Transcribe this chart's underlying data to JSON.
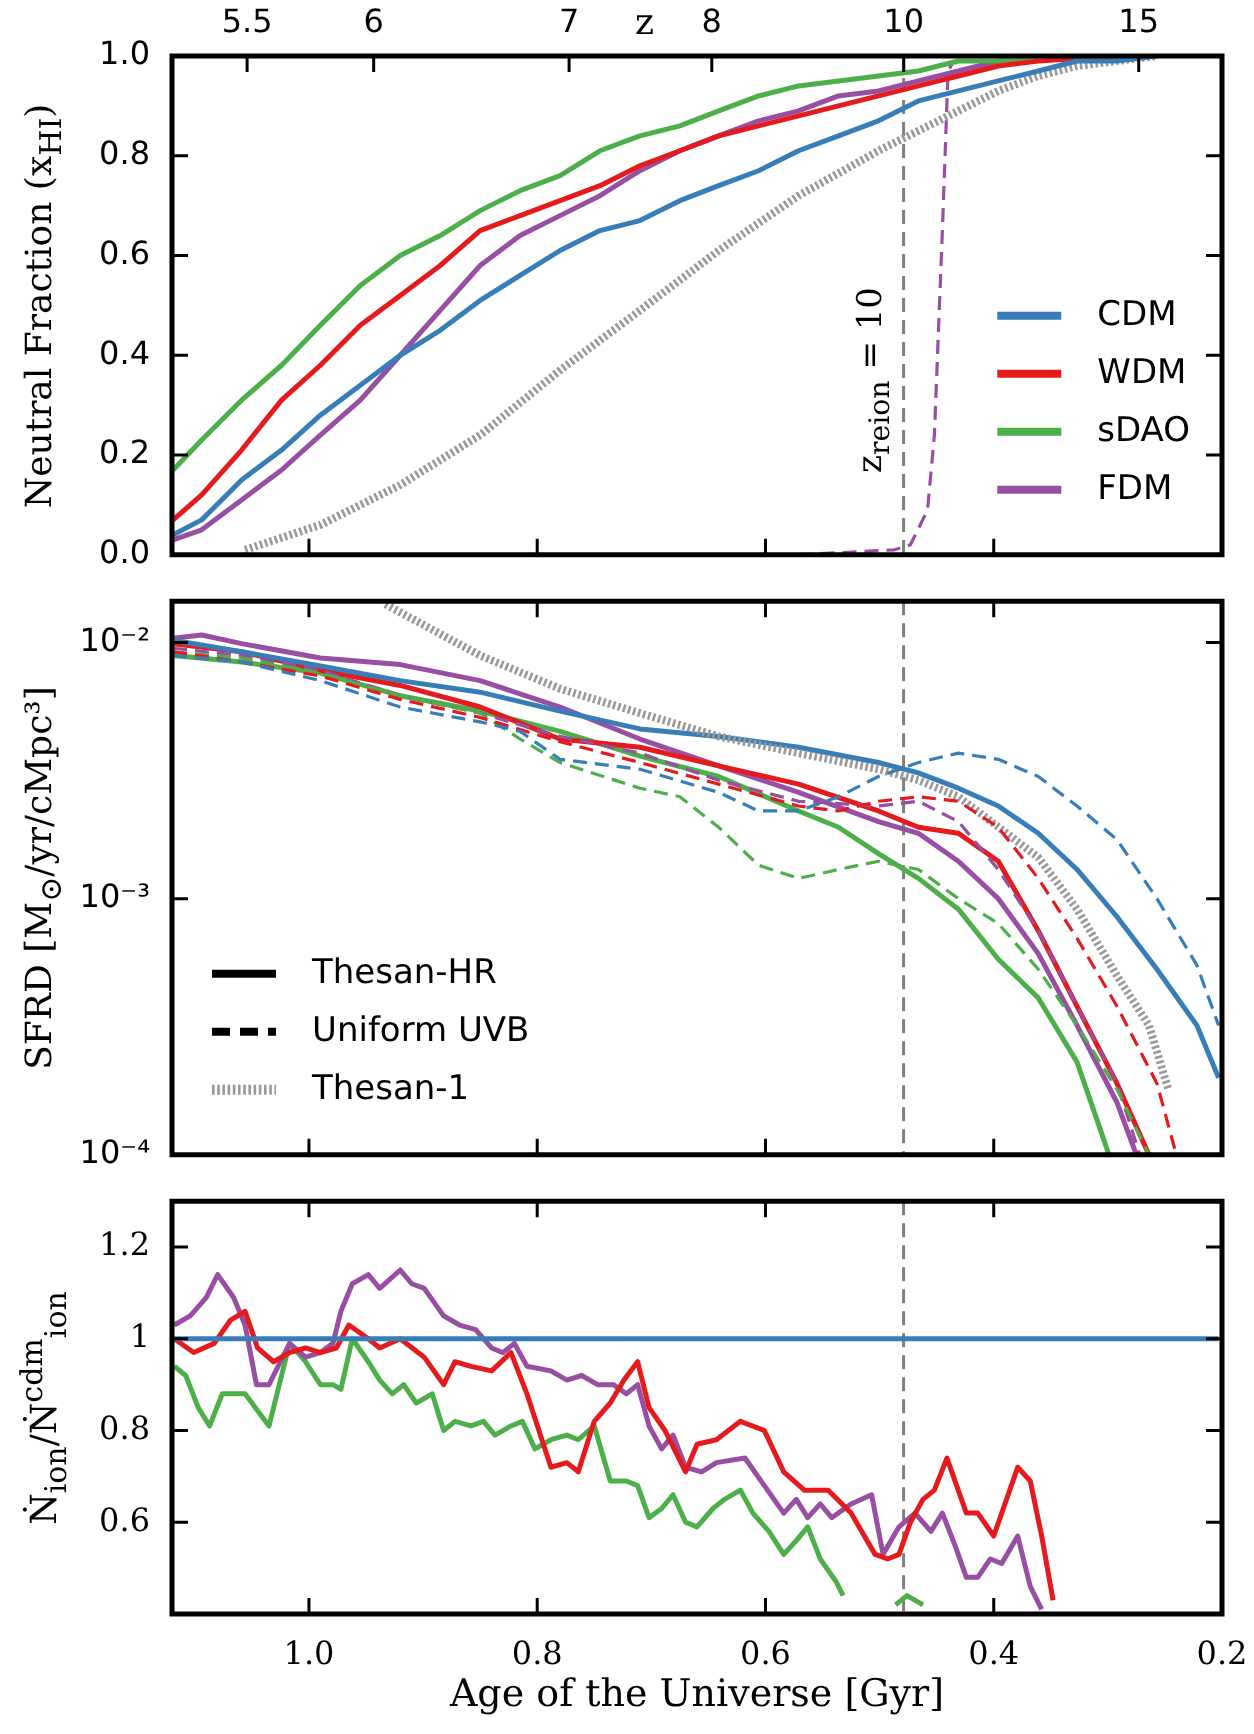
{
  "chart_data": [
    {
      "type": "line",
      "ylabel": "Neutral Fraction (x$_{HI}$)",
      "x2label": "z",
      "xlim": [
        1.12,
        0.2
      ],
      "xticks": [
        1,
        0.8,
        0.6,
        0.4,
        0.2
      ],
      "ylim": [
        0,
        1
      ],
      "yticks": [
        {
          "value": 0,
          "label": "0.0"
        },
        0.2,
        0.4,
        0.6,
        0.8,
        {
          "value": 1,
          "label": "1.0"
        }
      ],
      "tick_labels": "y",
      "legend": "bottom right",
      "annotations": [
        "5.5",
        "6",
        "7",
        "8",
        "10",
        "15",
        "z$_{reion}$ = 10"
      ],
      "ref_lines": [
        {
          "axis": "x",
          "value": 0.479,
          "color": "#808080",
          "line_style": "dashed"
        }
      ],
      "series": [
        {
          "name": "CDM",
          "color": "#377eb8",
          "x": [
            1.119,
            1.094,
            1.059,
            1.024,
            0.99,
            0.955,
            0.92,
            0.885,
            0.85,
            0.815,
            0.78,
            0.745,
            0.71,
            0.675,
            0.641,
            0.606,
            0.571,
            0.536,
            0.501,
            0.466,
            0.431,
            0.396,
            0.361,
            0.327,
            0.292,
            0.257
          ],
          "values": [
            0.04,
            0.07,
            0.15,
            0.21,
            0.28,
            0.34,
            0.4,
            0.45,
            0.51,
            0.56,
            0.61,
            0.65,
            0.67,
            0.71,
            0.74,
            0.77,
            0.81,
            0.84,
            0.87,
            0.91,
            0.93,
            0.95,
            0.97,
            0.99,
            0.99,
            1.0
          ]
        },
        {
          "name": "WDM",
          "color": "#e41a1c",
          "x": [
            1.119,
            1.094,
            1.059,
            1.024,
            0.99,
            0.955,
            0.92,
            0.885,
            0.85,
            0.815,
            0.78,
            0.745,
            0.71,
            0.675,
            0.641,
            0.606,
            0.571,
            0.536,
            0.501,
            0.466,
            0.431,
            0.396,
            0.361,
            0.292
          ],
          "values": [
            0.07,
            0.12,
            0.21,
            0.31,
            0.38,
            0.46,
            0.52,
            0.58,
            0.65,
            0.68,
            0.71,
            0.74,
            0.78,
            0.81,
            0.84,
            0.86,
            0.88,
            0.9,
            0.92,
            0.94,
            0.96,
            0.98,
            0.99,
            1.0
          ]
        },
        {
          "name": "sDAO",
          "color": "#4daf4a",
          "x": [
            1.119,
            1.094,
            1.059,
            1.024,
            0.99,
            0.955,
            0.92,
            0.885,
            0.85,
            0.815,
            0.78,
            0.745,
            0.71,
            0.675,
            0.641,
            0.606,
            0.571,
            0.536,
            0.501,
            0.466,
            0.431,
            0.396,
            0.361
          ],
          "values": [
            0.17,
            0.23,
            0.31,
            0.38,
            0.46,
            0.54,
            0.6,
            0.64,
            0.69,
            0.73,
            0.76,
            0.81,
            0.84,
            0.86,
            0.89,
            0.92,
            0.94,
            0.95,
            0.96,
            0.97,
            0.99,
            0.99,
            1.0
          ]
        },
        {
          "name": "FDM",
          "color": "#984ea3",
          "x": [
            1.119,
            1.094,
            1.059,
            1.024,
            0.99,
            0.955,
            0.92,
            0.885,
            0.85,
            0.815,
            0.78,
            0.745,
            0.71,
            0.675,
            0.641,
            0.606,
            0.571,
            0.536,
            0.501,
            0.466,
            0.431,
            0.396,
            0.361
          ],
          "values": [
            0.03,
            0.05,
            0.11,
            0.17,
            0.24,
            0.31,
            0.4,
            0.49,
            0.58,
            0.64,
            0.68,
            0.72,
            0.77,
            0.81,
            0.84,
            0.87,
            0.89,
            0.92,
            0.93,
            0.95,
            0.97,
            0.99,
            1.0
          ]
        },
        {
          "color": "#999999",
          "line_style": "dotted",
          "x": [
            1.056,
            0.99,
            0.92,
            0.85,
            0.78,
            0.71,
            0.641,
            0.571,
            0.501,
            0.466,
            0.431,
            0.396,
            0.361,
            0.327,
            0.257
          ],
          "values": [
            0.01,
            0.06,
            0.14,
            0.24,
            0.37,
            0.49,
            0.61,
            0.72,
            0.81,
            0.85,
            0.89,
            0.93,
            0.96,
            0.98,
            1.0
          ]
        },
        {
          "color": "#984ea3",
          "line_style": "dashed",
          "x": [
            0.571,
            0.487,
            0.473,
            0.458,
            0.452,
            0.445,
            0.44,
            0.435
          ],
          "values": [
            0.0,
            0.01,
            0.02,
            0.09,
            0.24,
            0.65,
            0.97,
            0.99
          ]
        }
      ]
    },
    {
      "type": "line",
      "ylabel": "SFRD [M$_{⊙}$/yr/cMpc³]",
      "log": "y",
      "xlim": [
        1.12,
        0.2
      ],
      "xticks": [
        1,
        0.8,
        0.6,
        0.4,
        0.2
      ],
      "ylim": [
        0.0001,
        0.0145
      ],
      "yticks": [
        {
          "value": 0.0001,
          "label": "10⁻⁴"
        },
        {
          "value": 0.001,
          "label": "10⁻³"
        },
        {
          "value": 0.01,
          "label": "10⁻²"
        }
      ],
      "tick_labels": "y",
      "legend": "bottom left",
      "annotations": [
        "Thesan-HR",
        "Uniform UVB"
      ],
      "ref_lines": [
        {
          "axis": "x",
          "value": 0.479,
          "color": "#808080",
          "line_style": "dashed"
        }
      ],
      "series": [
        {
          "color": "#377eb8",
          "line_style": "dashed",
          "x": [
            1.119,
            1.059,
            0.99,
            0.92,
            0.85,
            0.815,
            0.78,
            0.71,
            0.641,
            0.606,
            0.571,
            0.536,
            0.501,
            0.466,
            0.431,
            0.396,
            0.361,
            0.327,
            0.292,
            0.257,
            0.222,
            0.203
          ],
          "values": [
            0.0089,
            0.0084,
            0.0071,
            0.0056,
            0.0049,
            0.0045,
            0.0035,
            0.0032,
            0.0026,
            0.0022,
            0.0022,
            0.0025,
            0.003,
            0.0034,
            0.0037,
            0.0035,
            0.003,
            0.0023,
            0.0017,
            0.001,
            0.00055,
            0.00032
          ]
        },
        {
          "color": "#e41a1c",
          "line_style": "dashed",
          "x": [
            1.119,
            1.059,
            0.99,
            0.92,
            0.85,
            0.78,
            0.71,
            0.641,
            0.571,
            0.536,
            0.501,
            0.466,
            0.431,
            0.396,
            0.361,
            0.327,
            0.292,
            0.257,
            0.24
          ],
          "values": [
            0.0092,
            0.0084,
            0.0074,
            0.006,
            0.0051,
            0.0041,
            0.0034,
            0.0028,
            0.0023,
            0.0022,
            0.0024,
            0.0025,
            0.0024,
            0.0019,
            0.0012,
            0.0007,
            0.00038,
            0.00019,
            0.0001
          ]
        },
        {
          "color": "#4daf4a",
          "line_style": "dashed",
          "x": [
            1.119,
            1.059,
            0.99,
            0.92,
            0.85,
            0.815,
            0.78,
            0.71,
            0.675,
            0.641,
            0.606,
            0.571,
            0.536,
            0.501,
            0.466,
            0.431,
            0.396,
            0.361,
            0.327,
            0.292,
            0.264
          ],
          "values": [
            0.0092,
            0.0087,
            0.0076,
            0.0062,
            0.0053,
            0.0042,
            0.0034,
            0.0027,
            0.0025,
            0.0019,
            0.00135,
            0.0012,
            0.0013,
            0.0014,
            0.0013,
            0.001,
            0.0008,
            0.00053,
            0.00032,
            0.00018,
            0.0001
          ]
        },
        {
          "color": "#984ea3",
          "line_style": "dashed",
          "x": [
            1.119,
            1.059,
            0.99,
            0.92,
            0.85,
            0.78,
            0.71,
            0.641,
            0.571,
            0.501,
            0.466,
            0.431,
            0.396,
            0.361,
            0.327,
            0.292,
            0.272
          ],
          "values": [
            0.0095,
            0.0089,
            0.0078,
            0.0062,
            0.0053,
            0.0043,
            0.0037,
            0.0029,
            0.0024,
            0.0023,
            0.0024,
            0.002,
            0.0013,
            0.00075,
            0.00038,
            0.00019,
            0.0001
          ]
        },
        {
          "name": "Thesan-1",
          "color": "#999999",
          "line_style": "dotted",
          "x": [
            0.933,
            0.85,
            0.78,
            0.71,
            0.641,
            0.571,
            0.501,
            0.466,
            0.431,
            0.361,
            0.327,
            0.292,
            0.264,
            0.247
          ],
          "values": [
            0.0141,
            0.0089,
            0.0066,
            0.0053,
            0.0043,
            0.0037,
            0.0032,
            0.0029,
            0.0025,
            0.00145,
            0.00091,
            0.0005,
            0.00032,
            0.00018
          ]
        },
        {
          "color": "#377eb8",
          "line_style": "solid",
          "x": [
            1.119,
            1.059,
            0.99,
            0.92,
            0.85,
            0.78,
            0.71,
            0.641,
            0.571,
            0.501,
            0.466,
            0.431,
            0.396,
            0.361,
            0.327,
            0.292,
            0.257,
            0.222,
            0.203
          ],
          "values": [
            0.0102,
            0.0092,
            0.0081,
            0.0071,
            0.0064,
            0.0054,
            0.0046,
            0.0043,
            0.0039,
            0.0034,
            0.0031,
            0.0027,
            0.0023,
            0.0018,
            0.0013,
            0.00085,
            0.00053,
            0.00032,
            0.0002
          ]
        },
        {
          "color": "#e41a1c",
          "line_style": "solid",
          "x": [
            1.119,
            1.059,
            0.99,
            0.92,
            0.85,
            0.78,
            0.71,
            0.641,
            0.571,
            0.501,
            0.466,
            0.431,
            0.396,
            0.361,
            0.327,
            0.292,
            0.264
          ],
          "values": [
            0.0099,
            0.0092,
            0.0078,
            0.0068,
            0.0056,
            0.0042,
            0.0039,
            0.0033,
            0.0028,
            0.0022,
            0.0019,
            0.0018,
            0.0014,
            0.00075,
            0.00038,
            0.00019,
            0.0001
          ]
        },
        {
          "color": "#4daf4a",
          "line_style": "solid",
          "x": [
            1.119,
            1.059,
            0.99,
            0.92,
            0.85,
            0.78,
            0.71,
            0.641,
            0.571,
            0.536,
            0.501,
            0.466,
            0.431,
            0.396,
            0.361,
            0.327,
            0.299
          ],
          "values": [
            0.0089,
            0.0084,
            0.0076,
            0.0062,
            0.0054,
            0.0045,
            0.0036,
            0.003,
            0.0022,
            0.0019,
            0.0015,
            0.0012,
            0.00091,
            0.00058,
            0.00041,
            0.00023,
            0.0001
          ]
        },
        {
          "color": "#984ea3",
          "line_style": "solid",
          "x": [
            1.119,
            1.094,
            1.059,
            0.99,
            0.92,
            0.85,
            0.78,
            0.71,
            0.641,
            0.571,
            0.501,
            0.466,
            0.431,
            0.396,
            0.361,
            0.327,
            0.292,
            0.275
          ],
          "values": [
            0.0104,
            0.0107,
            0.0099,
            0.0087,
            0.0082,
            0.0071,
            0.0056,
            0.0042,
            0.0033,
            0.0026,
            0.002,
            0.0018,
            0.0014,
            0.001,
            0.00061,
            0.00032,
            0.00016,
            0.0001
          ]
        }
      ]
    },
    {
      "type": "line",
      "ylabel": "Ṅ$_{ion}$/Ṅ$^{cdm}$$_{ion}$",
      "xlabel": "Age of the Universe [Gyr]",
      "xlim": [
        1.12,
        0.2
      ],
      "xticks": [
        {
          "value": 1,
          "label": "1.0"
        },
        0.8,
        0.6,
        0.4,
        0.2
      ],
      "ylim": [
        0.4,
        1.3
      ],
      "yticks": [
        0.6,
        0.8,
        1,
        1.2
      ],
      "ref_lines": [
        {
          "axis": "x",
          "value": 0.479,
          "color": "#808080",
          "line_style": "dashed"
        }
      ],
      "series": [
        {
          "color": "#377eb8",
          "x": [
            1.119,
            0.203
          ],
          "values": [
            1,
            1
          ]
        },
        {
          "color": "#e41a1c",
          "x": [
            1.118,
            1.101,
            1.083,
            1.069,
            1.056,
            1.045,
            1.031,
            1.017,
            1.003,
            0.99,
            0.976,
            0.965,
            0.948,
            0.938,
            0.92,
            0.899,
            0.882,
            0.872,
            0.858,
            0.84,
            0.823,
            0.809,
            0.788,
            0.774,
            0.764,
            0.75,
            0.736,
            0.724,
            0.712,
            0.702,
            0.688,
            0.67,
            0.66,
            0.643,
            0.622,
            0.601,
            0.584,
            0.566,
            0.545,
            0.525,
            0.504,
            0.493,
            0.483,
            0.473,
            0.462,
            0.452,
            0.441,
            0.424,
            0.414,
            0.4,
            0.379,
            0.368,
            0.358,
            0.348
          ],
          "values": [
            1.0,
            0.97,
            0.99,
            1.04,
            1.06,
            0.98,
            0.95,
            0.97,
            0.98,
            0.97,
            0.98,
            1.03,
            1.0,
            0.98,
            1.0,
            0.96,
            0.9,
            0.95,
            0.94,
            0.93,
            0.97,
            0.88,
            0.72,
            0.73,
            0.71,
            0.82,
            0.86,
            0.91,
            0.95,
            0.85,
            0.8,
            0.71,
            0.77,
            0.78,
            0.82,
            0.8,
            0.71,
            0.67,
            0.67,
            0.62,
            0.53,
            0.52,
            0.53,
            0.6,
            0.65,
            0.67,
            0.74,
            0.62,
            0.62,
            0.57,
            0.72,
            0.69,
            0.57,
            0.43
          ]
        },
        {
          "color": "#984ea3",
          "x": [
            1.118,
            1.104,
            1.09,
            1.08,
            1.066,
            1.056,
            1.046,
            1.035,
            1.017,
            1.003,
            0.99,
            0.979,
            0.972,
            0.962,
            0.948,
            0.938,
            0.92,
            0.91,
            0.899,
            0.882,
            0.868,
            0.854,
            0.84,
            0.83,
            0.82,
            0.809,
            0.788,
            0.774,
            0.761,
            0.747,
            0.733,
            0.722,
            0.712,
            0.702,
            0.691,
            0.681,
            0.67,
            0.656,
            0.643,
            0.618,
            0.601,
            0.584,
            0.573,
            0.563,
            0.552,
            0.542,
            0.525,
            0.507,
            0.497,
            0.483,
            0.469,
            0.455,
            0.445,
            0.434,
            0.424,
            0.414,
            0.403,
            0.393,
            0.379,
            0.368,
            0.358
          ],
          "values": [
            1.03,
            1.05,
            1.09,
            1.14,
            1.09,
            1.03,
            0.9,
            0.9,
            0.99,
            0.96,
            0.97,
            0.99,
            1.06,
            1.12,
            1.14,
            1.11,
            1.15,
            1.12,
            1.11,
            1.05,
            1.03,
            1.02,
            0.98,
            0.97,
            0.99,
            0.94,
            0.93,
            0.91,
            0.92,
            0.9,
            0.9,
            0.88,
            0.9,
            0.81,
            0.76,
            0.79,
            0.72,
            0.71,
            0.73,
            0.74,
            0.68,
            0.62,
            0.65,
            0.61,
            0.64,
            0.61,
            0.64,
            0.66,
            0.53,
            0.59,
            0.62,
            0.58,
            0.62,
            0.55,
            0.48,
            0.48,
            0.52,
            0.51,
            0.57,
            0.46,
            0.41
          ]
        },
        {
          "color": "#4daf4a",
          "x": [
            1.118,
            1.108,
            1.097,
            1.087,
            1.076,
            1.066,
            1.056,
            1.035,
            1.017,
            1.003,
            0.99,
            0.979,
            0.972,
            0.962,
            0.948,
            0.938,
            0.927,
            0.917,
            0.906,
            0.892,
            0.882,
            0.872,
            0.858,
            0.847,
            0.837,
            0.823,
            0.813,
            0.802,
            0.788,
            0.774,
            0.764,
            0.75,
            0.736,
            0.722,
            0.712,
            0.702,
            0.691,
            0.681,
            0.67,
            0.66,
            0.646,
            0.636,
            0.622,
            0.611,
            0.597,
            0.584,
            0.573,
            0.563,
            0.552,
            0.538,
            0.532,
            0.51,
            0.486,
            0.476,
            0.462
          ],
          "values": [
            0.94,
            0.92,
            0.85,
            0.81,
            0.88,
            0.88,
            0.88,
            0.81,
            0.99,
            0.95,
            0.9,
            0.9,
            0.89,
            1.0,
            0.95,
            0.91,
            0.88,
            0.9,
            0.86,
            0.88,
            0.8,
            0.82,
            0.81,
            0.82,
            0.79,
            0.81,
            0.82,
            0.76,
            0.78,
            0.79,
            0.78,
            0.81,
            0.69,
            0.69,
            0.68,
            0.61,
            0.63,
            0.66,
            0.6,
            0.59,
            0.63,
            0.65,
            0.67,
            0.62,
            0.58,
            0.53,
            0.56,
            0.59,
            0.52,
            0.47,
            0.44,
            null,
            0.42,
            0.44,
            0.42
          ]
        }
      ]
    }
  ]
}
